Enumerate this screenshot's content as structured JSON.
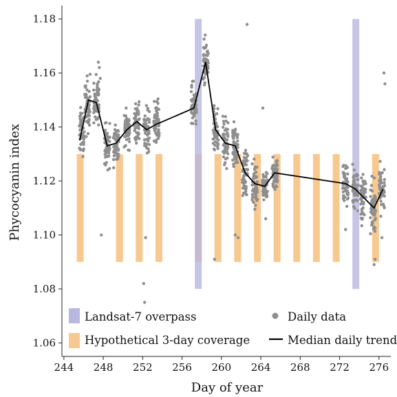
{
  "chart_data": {
    "type": "scatter",
    "xlabel": "Day of year",
    "ylabel": "Phycocyanin index",
    "xlim": [
      243.8,
      277.2
    ],
    "ylim": [
      1.055,
      1.185
    ],
    "x_ticks": [
      244,
      248,
      252,
      256,
      260,
      264,
      268,
      272,
      276
    ],
    "y_ticks": [
      1.06,
      1.08,
      1.1,
      1.12,
      1.14,
      1.16,
      1.18
    ],
    "y_tick_labels": [
      "1.06",
      "1.08",
      "1.10",
      "1.12",
      "1.14",
      "1.16",
      "1.18"
    ],
    "grid": false,
    "legend_position": "bottom",
    "landsat_overpass": {
      "label": "Landsat-7 overpass",
      "color": "#b9b6df",
      "y_range": [
        1.08,
        1.18
      ],
      "intervals": [
        [
          257.3,
          258.0
        ],
        [
          273.3,
          274.0
        ]
      ]
    },
    "hypothetical_coverage": {
      "label": "Hypothetical 3-day coverage",
      "color": "#f7c990",
      "y_range": [
        1.09,
        1.13
      ],
      "intervals": [
        [
          245.3,
          246.0
        ],
        [
          249.3,
          250.0
        ],
        [
          251.3,
          252.0
        ],
        [
          253.3,
          254.0
        ],
        [
          257.3,
          258.0
        ],
        [
          259.3,
          260.0
        ],
        [
          261.3,
          262.0
        ],
        [
          263.3,
          264.0
        ],
        [
          265.3,
          266.0
        ],
        [
          267.3,
          268.0
        ],
        [
          269.3,
          270.0
        ],
        [
          271.3,
          272.0
        ],
        [
          275.3,
          276.0
        ]
      ]
    },
    "daily_data": {
      "label": "Daily data",
      "color": "#8e8e8e",
      "clusters": [
        {
          "day": 245.8,
          "median": 1.138,
          "spread": 0.004
        },
        {
          "day": 246.4,
          "median": 1.148,
          "spread": 0.005
        },
        {
          "day": 247.3,
          "median": 1.15,
          "spread": 0.004
        },
        {
          "day": 248.4,
          "median": 1.133,
          "spread": 0.004
        },
        {
          "day": 249.3,
          "median": 1.134,
          "spread": 0.004
        },
        {
          "day": 250.4,
          "median": 1.139,
          "spread": 0.003
        },
        {
          "day": 251.4,
          "median": 1.142,
          "spread": 0.004
        },
        {
          "day": 252.4,
          "median": 1.139,
          "spread": 0.004
        },
        {
          "day": 253.4,
          "median": 1.141,
          "spread": 0.004
        },
        {
          "day": 257.2,
          "median": 1.147,
          "spread": 0.004
        },
        {
          "day": 258.4,
          "median": 1.164,
          "spread": 0.004
        },
        {
          "day": 259.4,
          "median": 1.139,
          "spread": 0.004
        },
        {
          "day": 260.4,
          "median": 1.134,
          "spread": 0.004
        },
        {
          "day": 261.4,
          "median": 1.133,
          "spread": 0.004
        },
        {
          "day": 262.4,
          "median": 1.123,
          "spread": 0.004
        },
        {
          "day": 263.4,
          "median": 1.119,
          "spread": 0.004
        },
        {
          "day": 264.4,
          "median": 1.118,
          "spread": 0.003
        },
        {
          "day": 265.4,
          "median": 1.123,
          "spread": 0.003
        },
        {
          "day": 272.6,
          "median": 1.119,
          "spread": 0.004
        },
        {
          "day": 273.6,
          "median": 1.117,
          "spread": 0.004
        },
        {
          "day": 274.4,
          "median": 1.114,
          "spread": 0.004
        },
        {
          "day": 275.4,
          "median": 1.11,
          "spread": 0.004
        },
        {
          "day": 276.3,
          "median": 1.117,
          "spread": 0.004
        }
      ],
      "outliers": [
        {
          "x": 247.5,
          "y": 1.164
        },
        {
          "x": 247.6,
          "y": 1.162
        },
        {
          "x": 247.7,
          "y": 1.158
        },
        {
          "x": 247.8,
          "y": 1.1
        },
        {
          "x": 252.3,
          "y": 1.099
        },
        {
          "x": 252.1,
          "y": 1.082
        },
        {
          "x": 252.2,
          "y": 1.075
        },
        {
          "x": 262.6,
          "y": 1.178
        },
        {
          "x": 261.4,
          "y": 1.1
        },
        {
          "x": 261.7,
          "y": 1.099
        },
        {
          "x": 259.3,
          "y": 1.091
        },
        {
          "x": 264.2,
          "y": 1.147
        },
        {
          "x": 264.5,
          "y": 1.106
        },
        {
          "x": 272.6,
          "y": 1.102
        },
        {
          "x": 275.5,
          "y": 1.089
        },
        {
          "x": 275.6,
          "y": 1.091
        },
        {
          "x": 276.5,
          "y": 1.16
        },
        {
          "x": 276.6,
          "y": 1.156
        },
        {
          "x": 276.3,
          "y": 1.099
        }
      ]
    },
    "median_trend": {
      "label": "Median daily trend",
      "color": "#000000",
      "x": [
        245.6,
        246.5,
        247.3,
        248.4,
        249.3,
        250.4,
        251.4,
        252.4,
        253.4,
        257.2,
        258.4,
        259.4,
        260.4,
        261.4,
        262.4,
        263.4,
        264.4,
        265.4,
        272.6,
        273.6,
        274.4,
        275.5,
        276.4
      ],
      "y": [
        1.135,
        1.15,
        1.149,
        1.133,
        1.134,
        1.139,
        1.142,
        1.139,
        1.141,
        1.147,
        1.164,
        1.139,
        1.134,
        1.133,
        1.123,
        1.119,
        1.118,
        1.123,
        1.119,
        1.117,
        1.114,
        1.11,
        1.117
      ]
    }
  }
}
